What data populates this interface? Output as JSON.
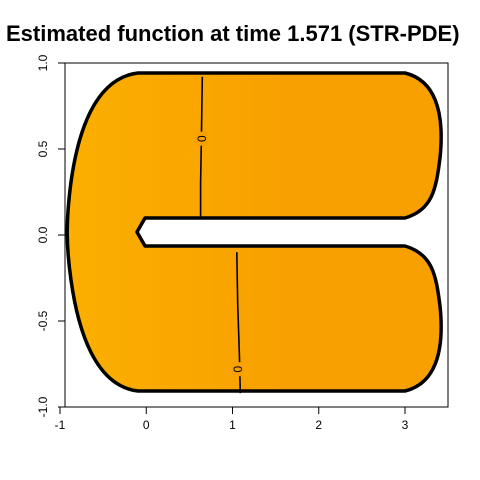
{
  "chart_data": {
    "type": "heatmap",
    "title": "Estimated function at time 1.571 (STR-PDE)",
    "xlabel": "",
    "ylabel": "",
    "xlim": [
      -1,
      3.5
    ],
    "ylim": [
      -1,
      1
    ],
    "x_ticks": [
      -1,
      0,
      1,
      2,
      3
    ],
    "x_tick_labels": [
      "-1",
      "0",
      "1",
      "2",
      "3"
    ],
    "y_ticks": [
      -1,
      -0.5,
      0,
      0.5,
      1
    ],
    "y_tick_labels": [
      "-1.0",
      "-0.5",
      "0.0",
      "0.5",
      "1.0"
    ],
    "grid": false,
    "legend": "none",
    "domain": "C-shaped horseshoe region",
    "fill_colors": {
      "light": "#FBAF00",
      "dark": "#F8A000"
    },
    "boundary_color": "#000000",
    "contours": [
      {
        "level": "0",
        "points": [
          [
            0.65,
            0.92
          ],
          [
            0.64,
            0.6
          ],
          [
            0.63,
            0.3
          ],
          [
            0.63,
            0.1
          ]
        ]
      },
      {
        "level": "0",
        "points": [
          [
            1.05,
            -0.1
          ],
          [
            1.06,
            -0.4
          ],
          [
            1.08,
            -0.7
          ],
          [
            1.09,
            -0.92
          ]
        ]
      }
    ]
  }
}
